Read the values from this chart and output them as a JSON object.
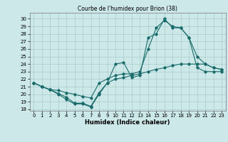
{
  "title": "Courbe de l'humidex pour Brion (38)",
  "xlabel": "Humidex (Indice chaleur)",
  "xlim": [
    -0.5,
    23.5
  ],
  "ylim": [
    17.8,
    30.8
  ],
  "yticks": [
    18,
    19,
    20,
    21,
    22,
    23,
    24,
    25,
    26,
    27,
    28,
    29,
    30
  ],
  "xticks": [
    0,
    1,
    2,
    3,
    4,
    5,
    6,
    7,
    8,
    9,
    10,
    11,
    12,
    13,
    14,
    15,
    16,
    17,
    18,
    19,
    20,
    21,
    22,
    23
  ],
  "background_color": "#cce8e8",
  "grid_color": "#aacccc",
  "line_color": "#1a6b6b",
  "line1_y": [
    21.5,
    21.0,
    20.6,
    20.0,
    19.3,
    18.7,
    18.7,
    18.3,
    20.0,
    21.5,
    22.0,
    22.2,
    22.5,
    22.7,
    23.0,
    23.3,
    23.5,
    23.8,
    24.0,
    24.0,
    24.0,
    24.0,
    23.5,
    23.3
  ],
  "line2_y": [
    21.5,
    21.0,
    20.6,
    20.1,
    19.6,
    18.8,
    18.8,
    18.4,
    20.2,
    21.5,
    24.0,
    24.2,
    22.2,
    22.5,
    27.5,
    28.0,
    30.0,
    28.8,
    28.8,
    27.5,
    25.0,
    24.0,
    23.5,
    23.3
  ],
  "line3_y": [
    21.5,
    21.0,
    20.6,
    20.5,
    20.2,
    20.0,
    19.7,
    19.5,
    21.5,
    22.0,
    22.5,
    22.7,
    22.7,
    23.0,
    26.0,
    28.8,
    29.8,
    29.0,
    28.8,
    27.5,
    23.5,
    23.0,
    23.0,
    23.0
  ]
}
